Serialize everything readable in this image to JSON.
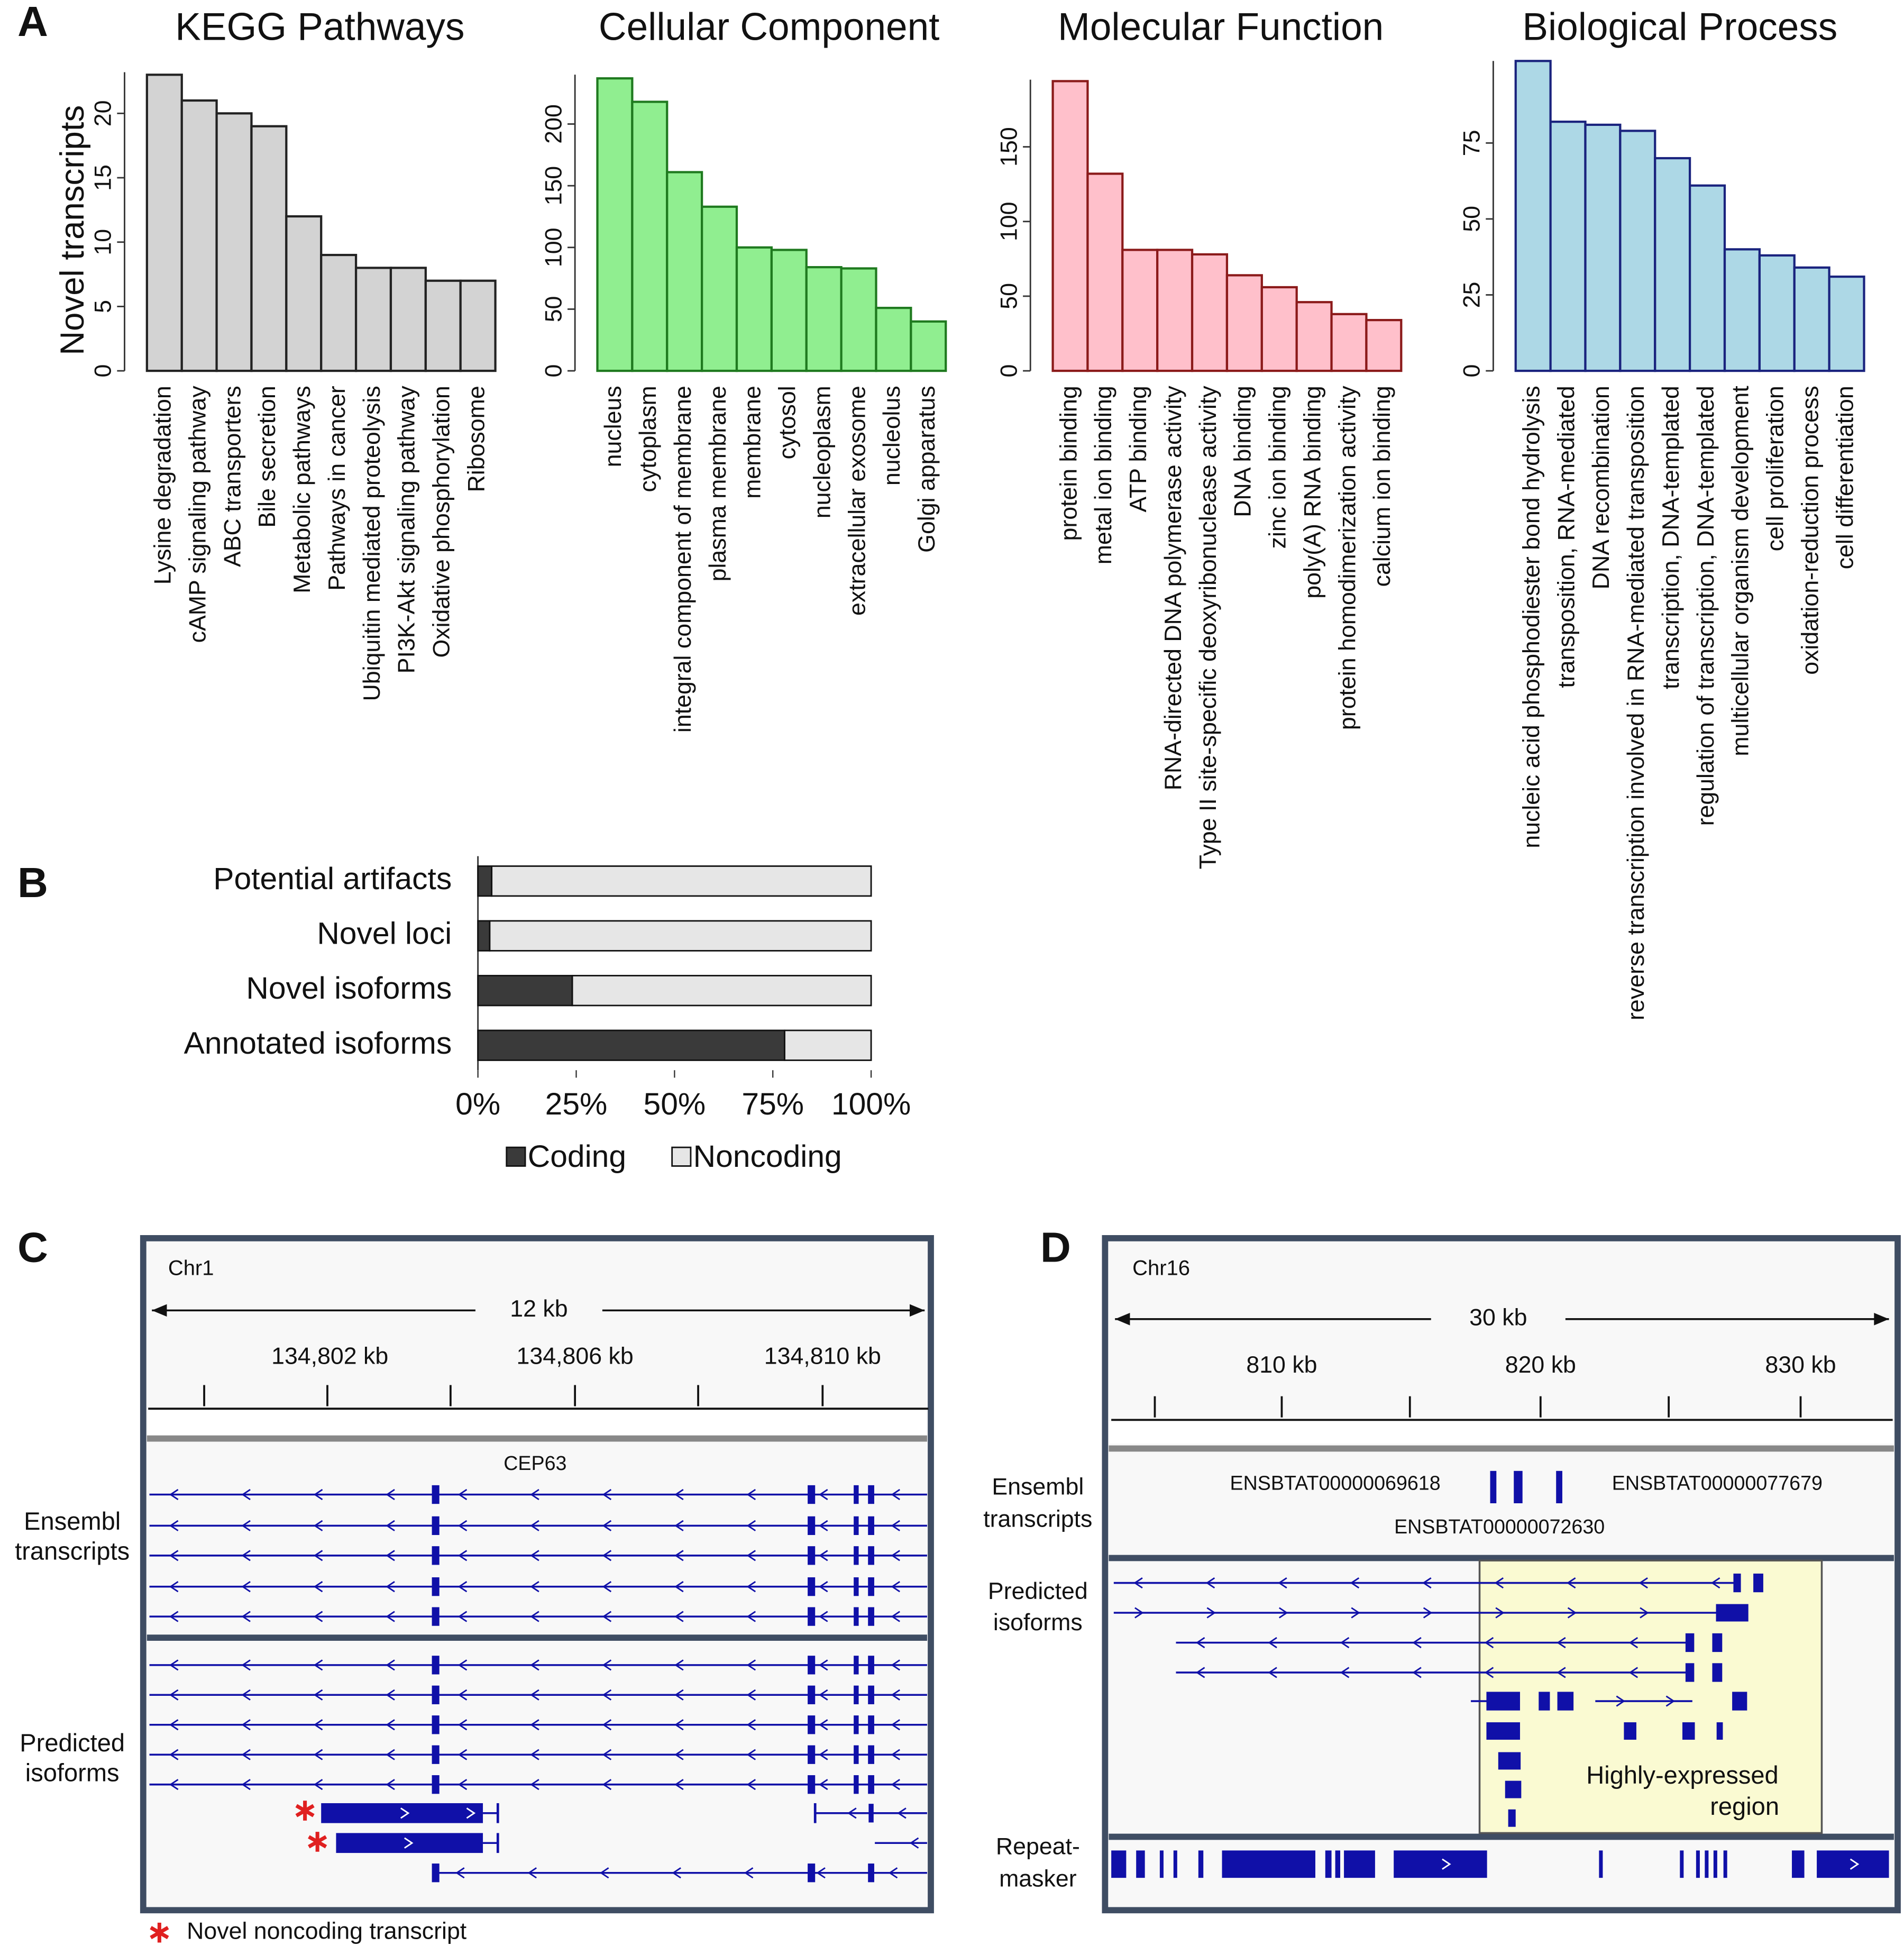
{
  "chart_data": [
    {
      "type": "bar",
      "title": "KEGG Pathways",
      "y_label": "Novel transcripts",
      "categories": [
        "Lysine degradation",
        "cAMP signaling pathway",
        "ABC transporters",
        "Bile secretion",
        "Metabolic pathways",
        "Pathways in cancer",
        "Ubiquitin mediated proteolysis",
        "PI3K-Akt signaling pathway",
        "Oxidative phosphorylation",
        "Ribosome"
      ],
      "values": [
        23,
        21,
        20,
        19,
        12,
        9,
        8,
        8,
        7,
        7
      ],
      "color": "#d3d3d3",
      "edge_color": "#222222",
      "ylim": [
        0,
        23.2
      ],
      "yticks": [
        0,
        5,
        10,
        15,
        20
      ]
    },
    {
      "type": "bar",
      "title": "Cellular Component",
      "categories": [
        "nucleus",
        "cytoplasm",
        "integral component of membrane",
        "plasma membrane",
        "membrane",
        "cytosol",
        "nucleoplasm",
        "extracellular exosome",
        "nucleolus",
        "Golgi apparatus"
      ],
      "values": [
        237,
        218,
        161,
        133,
        100,
        98,
        84,
        83,
        51,
        40
      ],
      "color": "#90ee90",
      "edge_color": "#1f7a1f",
      "ylim": [
        0,
        240
      ],
      "yticks": [
        0,
        50,
        100,
        150,
        200
      ]
    },
    {
      "type": "bar",
      "title": "Molecular Function",
      "categories": [
        "protein binding",
        "metal ion binding",
        "ATP binding",
        "RNA-directed DNA polymerase activity",
        "Type II site-specific deoxyribonuclease activity",
        "DNA binding",
        "zinc ion binding",
        "poly(A) RNA binding",
        "protein homodimerization activity",
        "calcium ion binding"
      ],
      "values": [
        194,
        132,
        81,
        81,
        78,
        64,
        56,
        46,
        38,
        34
      ],
      "color": "#ffc0cb",
      "edge_color": "#8b1a1a",
      "ylim": [
        0,
        195
      ],
      "yticks": [
        0,
        50,
        100,
        150
      ]
    },
    {
      "type": "bar",
      "title": "Biological Process",
      "categories": [
        "nucleic acid phosphodiester bond hydrolysis",
        "transposition, RNA-mediated",
        "DNA recombination",
        "reverse transcription involved in RNA-mediated transposition",
        "transcription, DNA-templated",
        "regulation of transcription, DNA-templated",
        "multicellular organism development",
        "cell proliferation",
        "oxidation-reduction process",
        "cell differentiation"
      ],
      "values": [
        102,
        82,
        81,
        79,
        70,
        61,
        40,
        38,
        34,
        31
      ],
      "color": "#add8e6",
      "edge_color": "#1a237e",
      "ylim": [
        0,
        102
      ],
      "yticks": [
        0,
        25,
        50,
        75
      ]
    },
    {
      "type": "stacked_hbar",
      "categories": [
        "Potential artifacts",
        "Novel loci",
        "Novel isoforms",
        "Annotated isoforms"
      ],
      "series": [
        {
          "name": "Coding",
          "color": "#3a3a3a",
          "values": [
            3.5,
            3,
            24,
            78
          ]
        },
        {
          "name": "Noncoding",
          "color": "#e6e6e6",
          "values": [
            96.5,
            97,
            76,
            22
          ]
        }
      ],
      "xlim": [
        0,
        100
      ],
      "xticks": [
        {
          "value": 0,
          "label": "0%"
        },
        {
          "value": 25,
          "label": "25%"
        },
        {
          "value": 50,
          "label": "50%"
        },
        {
          "value": 75,
          "label": "75%"
        },
        {
          "value": 100,
          "label": "100%"
        }
      ]
    }
  ],
  "panel_labels": [
    "A",
    "B",
    "C",
    "D"
  ],
  "browser_c": {
    "chromosome": "Chr1",
    "span": "12 kb",
    "ticks": [
      "134,802 kb",
      "134,806 kb",
      "134,810 kb"
    ],
    "gene": "CEP63",
    "tracks": [
      [
        "Ensembl",
        "transcripts"
      ],
      [
        "Predicted",
        "isoforms"
      ]
    ],
    "legend": "Novel noncoding transcript"
  },
  "browser_d": {
    "chromosome": "Chr16",
    "span": "30 kb",
    "ticks": [
      "810 kb",
      "820 kb",
      "830 kb"
    ],
    "transcripts": [
      "ENSBTAT00000069618",
      "ENSBTAT00000077679",
      "ENSBTAT00000072630"
    ],
    "tracks": [
      [
        "Ensembl",
        "transcripts"
      ],
      [
        "Predicted",
        "isoforms"
      ],
      [
        "Repeat-",
        "masker"
      ]
    ],
    "region_label": [
      "Highly-expressed",
      "region"
    ]
  }
}
